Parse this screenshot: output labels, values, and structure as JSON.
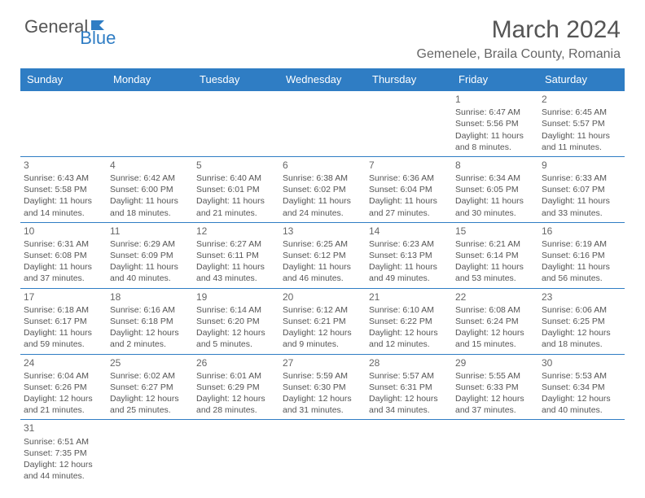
{
  "logo": {
    "part1": "General",
    "part2": "Blue",
    "part1_color": "#555555",
    "part2_color": "#2f7dc4"
  },
  "header": {
    "title": "March 2024",
    "location": "Gemenele, Braila County, Romania",
    "title_color": "#555555",
    "location_color": "#666666"
  },
  "colors": {
    "header_bg": "#2f7dc4",
    "border": "#2f7dc4",
    "background": "#ffffff",
    "text": "#555555"
  },
  "day_names": [
    "Sunday",
    "Monday",
    "Tuesday",
    "Wednesday",
    "Thursday",
    "Friday",
    "Saturday"
  ],
  "weeks": [
    [
      {
        "empty": true
      },
      {
        "empty": true
      },
      {
        "empty": true
      },
      {
        "empty": true
      },
      {
        "empty": true
      },
      {
        "day": "1",
        "sunrise": "Sunrise: 6:47 AM",
        "sunset": "Sunset: 5:56 PM",
        "daylight": "Daylight: 11 hours and 8 minutes."
      },
      {
        "day": "2",
        "sunrise": "Sunrise: 6:45 AM",
        "sunset": "Sunset: 5:57 PM",
        "daylight": "Daylight: 11 hours and 11 minutes."
      }
    ],
    [
      {
        "day": "3",
        "sunrise": "Sunrise: 6:43 AM",
        "sunset": "Sunset: 5:58 PM",
        "daylight": "Daylight: 11 hours and 14 minutes."
      },
      {
        "day": "4",
        "sunrise": "Sunrise: 6:42 AM",
        "sunset": "Sunset: 6:00 PM",
        "daylight": "Daylight: 11 hours and 18 minutes."
      },
      {
        "day": "5",
        "sunrise": "Sunrise: 6:40 AM",
        "sunset": "Sunset: 6:01 PM",
        "daylight": "Daylight: 11 hours and 21 minutes."
      },
      {
        "day": "6",
        "sunrise": "Sunrise: 6:38 AM",
        "sunset": "Sunset: 6:02 PM",
        "daylight": "Daylight: 11 hours and 24 minutes."
      },
      {
        "day": "7",
        "sunrise": "Sunrise: 6:36 AM",
        "sunset": "Sunset: 6:04 PM",
        "daylight": "Daylight: 11 hours and 27 minutes."
      },
      {
        "day": "8",
        "sunrise": "Sunrise: 6:34 AM",
        "sunset": "Sunset: 6:05 PM",
        "daylight": "Daylight: 11 hours and 30 minutes."
      },
      {
        "day": "9",
        "sunrise": "Sunrise: 6:33 AM",
        "sunset": "Sunset: 6:07 PM",
        "daylight": "Daylight: 11 hours and 33 minutes."
      }
    ],
    [
      {
        "day": "10",
        "sunrise": "Sunrise: 6:31 AM",
        "sunset": "Sunset: 6:08 PM",
        "daylight": "Daylight: 11 hours and 37 minutes."
      },
      {
        "day": "11",
        "sunrise": "Sunrise: 6:29 AM",
        "sunset": "Sunset: 6:09 PM",
        "daylight": "Daylight: 11 hours and 40 minutes."
      },
      {
        "day": "12",
        "sunrise": "Sunrise: 6:27 AM",
        "sunset": "Sunset: 6:11 PM",
        "daylight": "Daylight: 11 hours and 43 minutes."
      },
      {
        "day": "13",
        "sunrise": "Sunrise: 6:25 AM",
        "sunset": "Sunset: 6:12 PM",
        "daylight": "Daylight: 11 hours and 46 minutes."
      },
      {
        "day": "14",
        "sunrise": "Sunrise: 6:23 AM",
        "sunset": "Sunset: 6:13 PM",
        "daylight": "Daylight: 11 hours and 49 minutes."
      },
      {
        "day": "15",
        "sunrise": "Sunrise: 6:21 AM",
        "sunset": "Sunset: 6:14 PM",
        "daylight": "Daylight: 11 hours and 53 minutes."
      },
      {
        "day": "16",
        "sunrise": "Sunrise: 6:19 AM",
        "sunset": "Sunset: 6:16 PM",
        "daylight": "Daylight: 11 hours and 56 minutes."
      }
    ],
    [
      {
        "day": "17",
        "sunrise": "Sunrise: 6:18 AM",
        "sunset": "Sunset: 6:17 PM",
        "daylight": "Daylight: 11 hours and 59 minutes."
      },
      {
        "day": "18",
        "sunrise": "Sunrise: 6:16 AM",
        "sunset": "Sunset: 6:18 PM",
        "daylight": "Daylight: 12 hours and 2 minutes."
      },
      {
        "day": "19",
        "sunrise": "Sunrise: 6:14 AM",
        "sunset": "Sunset: 6:20 PM",
        "daylight": "Daylight: 12 hours and 5 minutes."
      },
      {
        "day": "20",
        "sunrise": "Sunrise: 6:12 AM",
        "sunset": "Sunset: 6:21 PM",
        "daylight": "Daylight: 12 hours and 9 minutes."
      },
      {
        "day": "21",
        "sunrise": "Sunrise: 6:10 AM",
        "sunset": "Sunset: 6:22 PM",
        "daylight": "Daylight: 12 hours and 12 minutes."
      },
      {
        "day": "22",
        "sunrise": "Sunrise: 6:08 AM",
        "sunset": "Sunset: 6:24 PM",
        "daylight": "Daylight: 12 hours and 15 minutes."
      },
      {
        "day": "23",
        "sunrise": "Sunrise: 6:06 AM",
        "sunset": "Sunset: 6:25 PM",
        "daylight": "Daylight: 12 hours and 18 minutes."
      }
    ],
    [
      {
        "day": "24",
        "sunrise": "Sunrise: 6:04 AM",
        "sunset": "Sunset: 6:26 PM",
        "daylight": "Daylight: 12 hours and 21 minutes."
      },
      {
        "day": "25",
        "sunrise": "Sunrise: 6:02 AM",
        "sunset": "Sunset: 6:27 PM",
        "daylight": "Daylight: 12 hours and 25 minutes."
      },
      {
        "day": "26",
        "sunrise": "Sunrise: 6:01 AM",
        "sunset": "Sunset: 6:29 PM",
        "daylight": "Daylight: 12 hours and 28 minutes."
      },
      {
        "day": "27",
        "sunrise": "Sunrise: 5:59 AM",
        "sunset": "Sunset: 6:30 PM",
        "daylight": "Daylight: 12 hours and 31 minutes."
      },
      {
        "day": "28",
        "sunrise": "Sunrise: 5:57 AM",
        "sunset": "Sunset: 6:31 PM",
        "daylight": "Daylight: 12 hours and 34 minutes."
      },
      {
        "day": "29",
        "sunrise": "Sunrise: 5:55 AM",
        "sunset": "Sunset: 6:33 PM",
        "daylight": "Daylight: 12 hours and 37 minutes."
      },
      {
        "day": "30",
        "sunrise": "Sunrise: 5:53 AM",
        "sunset": "Sunset: 6:34 PM",
        "daylight": "Daylight: 12 hours and 40 minutes."
      }
    ],
    [
      {
        "day": "31",
        "sunrise": "Sunrise: 6:51 AM",
        "sunset": "Sunset: 7:35 PM",
        "daylight": "Daylight: 12 hours and 44 minutes."
      },
      {
        "empty": true
      },
      {
        "empty": true
      },
      {
        "empty": true
      },
      {
        "empty": true
      },
      {
        "empty": true
      },
      {
        "empty": true
      }
    ]
  ]
}
